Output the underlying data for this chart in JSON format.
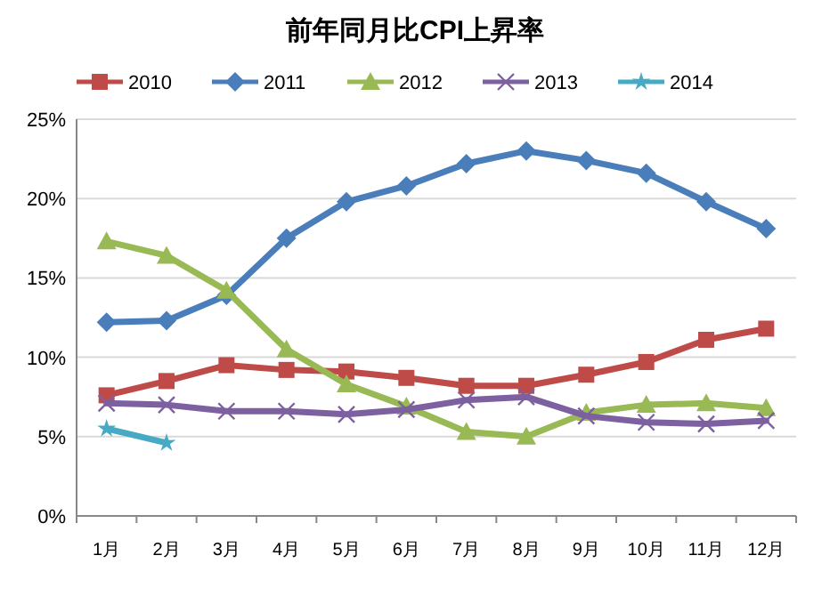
{
  "chart_data": {
    "type": "line",
    "title": "前年同月比CPI上昇率",
    "categories": [
      "1月",
      "2月",
      "3月",
      "4月",
      "5月",
      "6月",
      "7月",
      "8月",
      "9月",
      "10月",
      "11月",
      "12月"
    ],
    "series": [
      {
        "name": "2010",
        "color": "#be4b48",
        "marker": "square",
        "values": [
          7.6,
          8.5,
          9.5,
          9.2,
          9.1,
          8.7,
          8.2,
          8.2,
          8.9,
          9.7,
          11.1,
          11.8
        ]
      },
      {
        "name": "2011",
        "color": "#4a7ebb",
        "marker": "diamond",
        "values": [
          12.2,
          12.3,
          13.9,
          17.5,
          19.8,
          20.8,
          22.2,
          23.0,
          22.4,
          21.6,
          19.8,
          18.1
        ]
      },
      {
        "name": "2012",
        "color": "#98b954",
        "marker": "triangle",
        "values": [
          17.3,
          16.4,
          14.2,
          10.5,
          8.3,
          6.9,
          5.3,
          5.0,
          6.5,
          7.0,
          7.1,
          6.8
        ]
      },
      {
        "name": "2013",
        "color": "#7d60a0",
        "marker": "cross",
        "values": [
          7.1,
          7.0,
          6.6,
          6.6,
          6.4,
          6.7,
          7.3,
          7.5,
          6.3,
          5.9,
          5.8,
          6.0
        ]
      },
      {
        "name": "2014",
        "color": "#46aac5",
        "marker": "star",
        "values": [
          5.5,
          4.6,
          null,
          null,
          null,
          null,
          null,
          null,
          null,
          null,
          null,
          null
        ]
      }
    ],
    "ylim": [
      0,
      25
    ],
    "yticks": [
      {
        "value": 0,
        "label": "0%"
      },
      {
        "value": 5,
        "label": "5%"
      },
      {
        "value": 10,
        "label": "10%"
      },
      {
        "value": 15,
        "label": "15%"
      },
      {
        "value": 20,
        "label": "20%"
      },
      {
        "value": 25,
        "label": "25%"
      }
    ],
    "grid": "y",
    "legend": "top",
    "line_style": "solid"
  }
}
